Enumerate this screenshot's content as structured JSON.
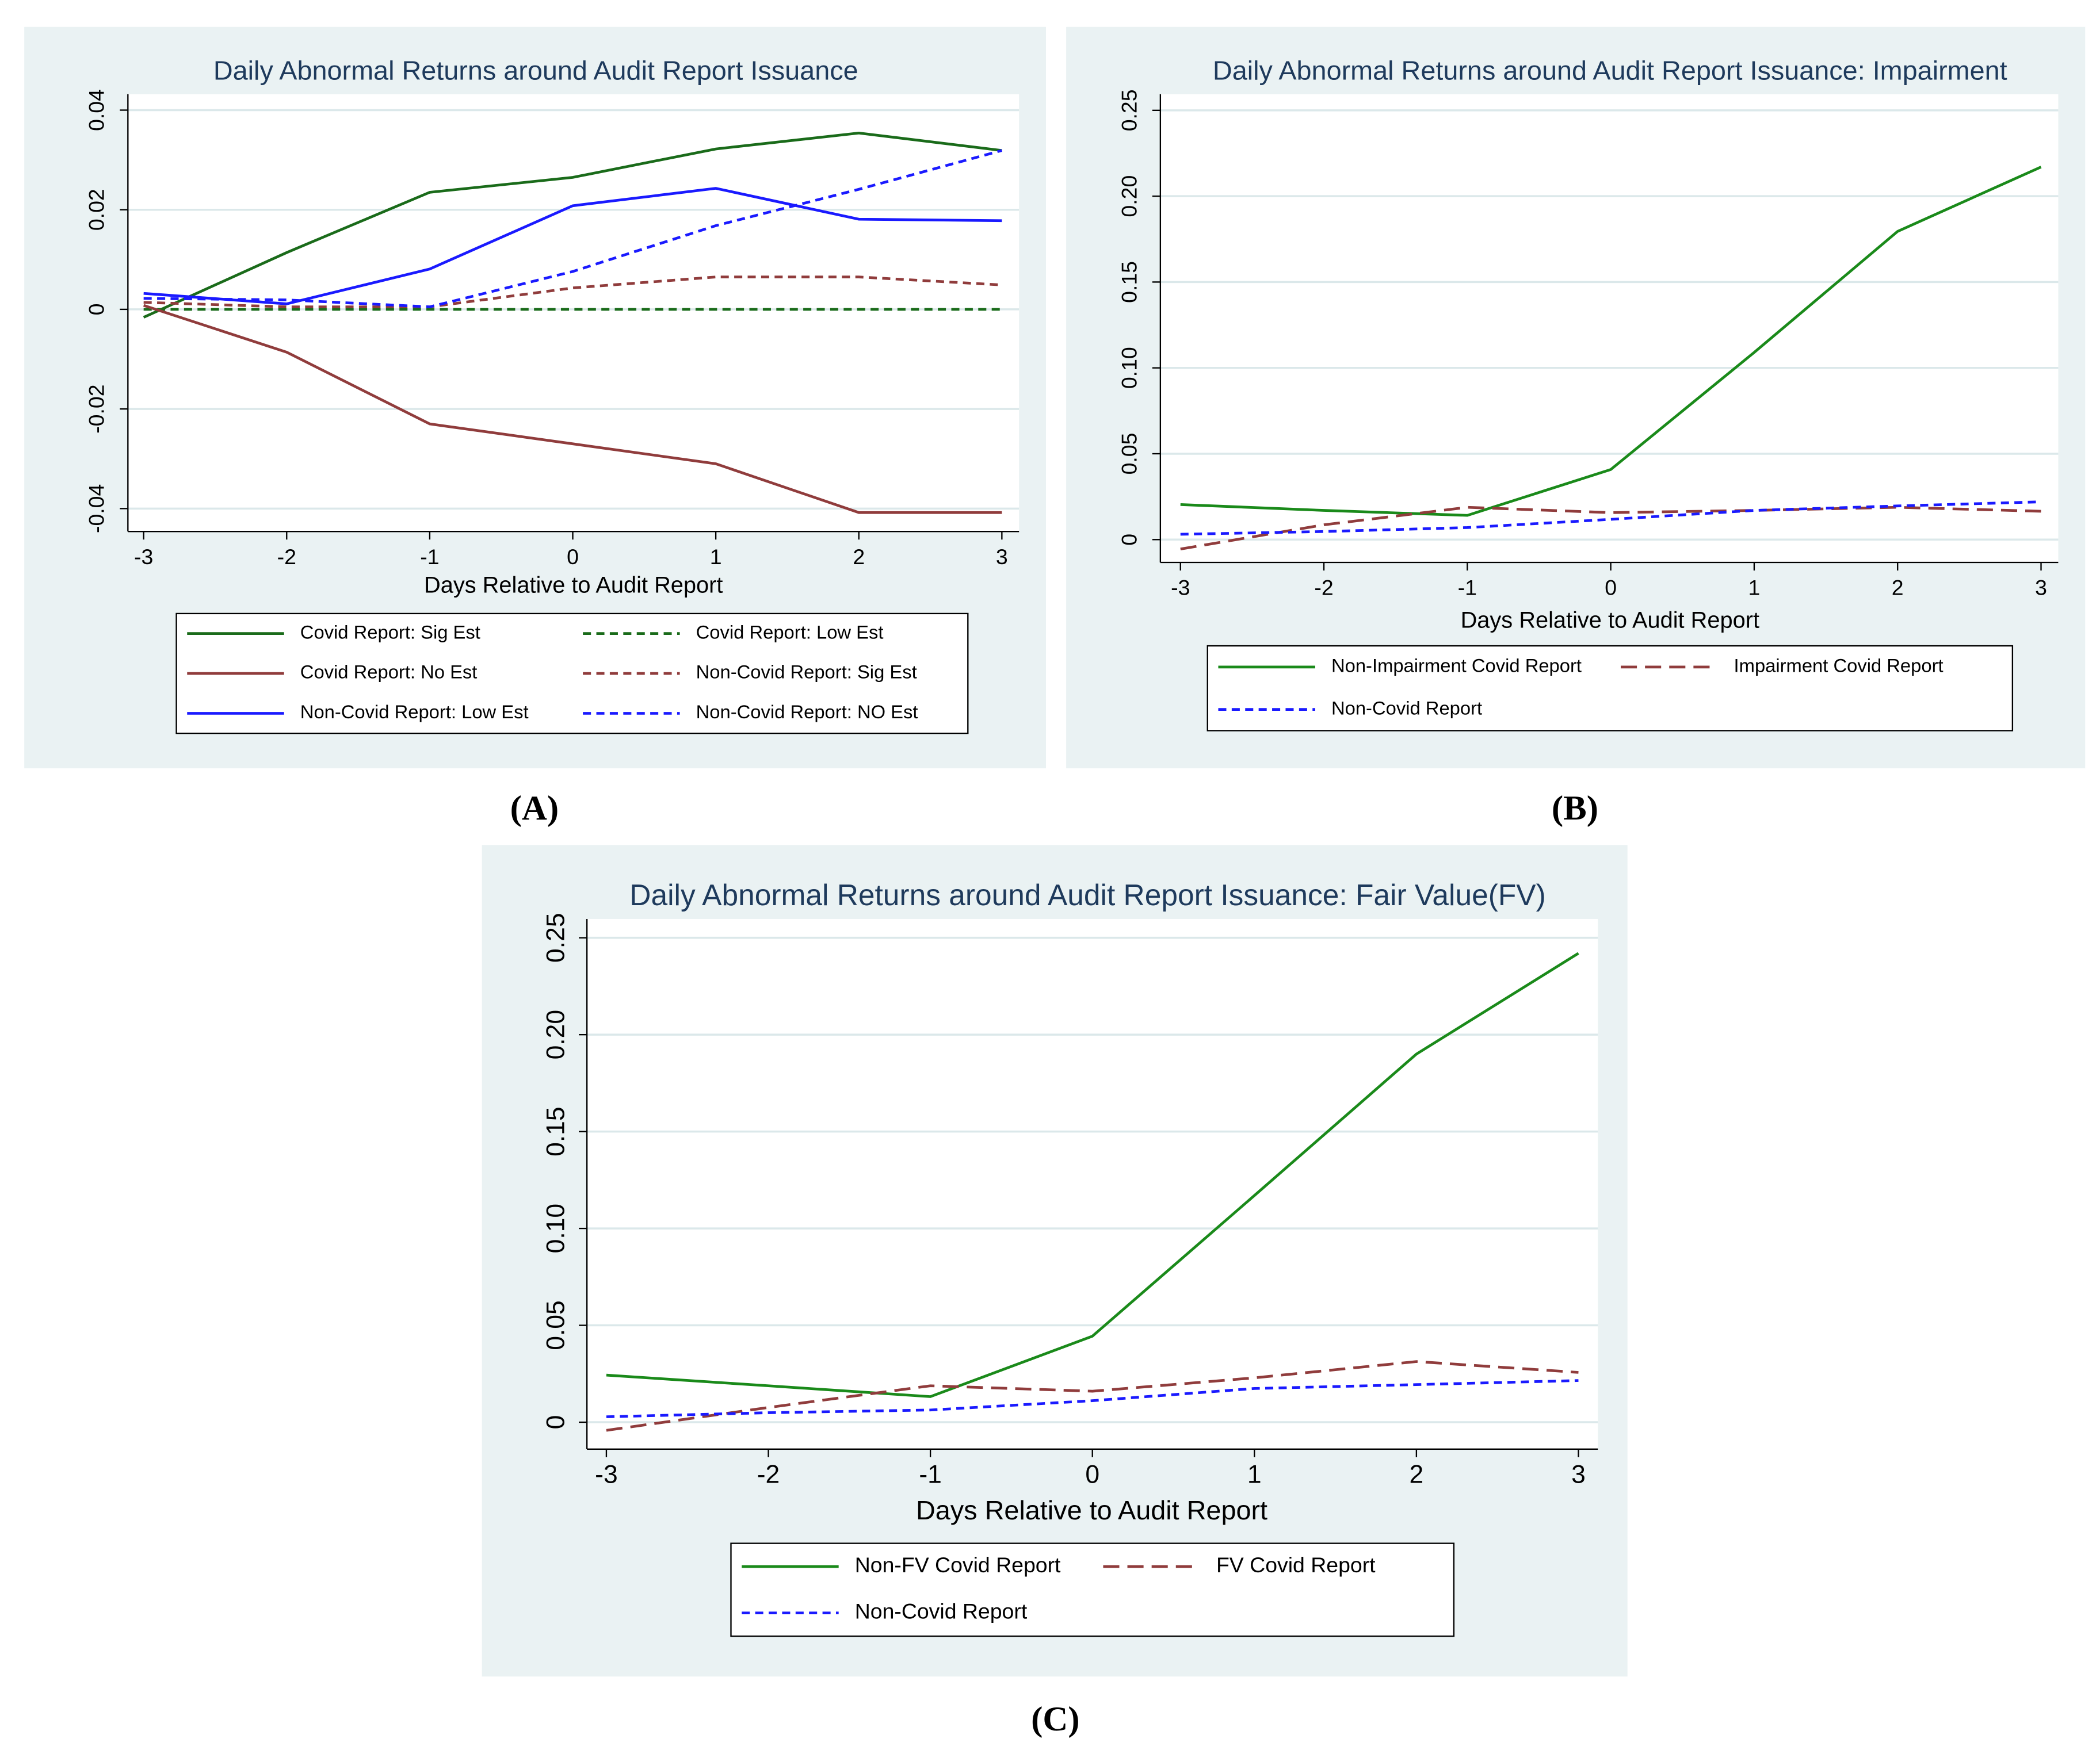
{
  "chart_data": [
    {
      "type": "line",
      "title": "Daily Abnormal Returns around Audit Report Issuance",
      "panel_label": "(A)",
      "x_label": "Days Relative to Audit Report",
      "x": [
        -3,
        -2,
        -1,
        0,
        1,
        2,
        3
      ],
      "xlim": [
        -3.11,
        3.12
      ],
      "xticks": [
        -3,
        -2,
        -1,
        0,
        1,
        2,
        3
      ],
      "ylim": [
        -0.0446,
        0.0432
      ],
      "yticks": [
        -0.04,
        -0.02,
        0,
        0.02,
        0.04
      ],
      "grid": true,
      "series": [
        {
          "name": "Covid Report: Sig Est",
          "color": "#1a6b1a",
          "linestyle": "solid",
          "values": [
            -0.0016,
            0.0114,
            0.0235,
            0.0265,
            0.0322,
            0.0354,
            0.0319
          ]
        },
        {
          "name": "Covid Report: Low Est",
          "color": "#1a6b1a",
          "linestyle": "dashed",
          "values": [
            0,
            0,
            0,
            0,
            0,
            0,
            0
          ]
        },
        {
          "name": "Covid Report: No Est",
          "color": "#903c3c",
          "linestyle": "solid",
          "values": [
            0.0008,
            -0.0086,
            -0.023,
            -0.027,
            -0.031,
            -0.0408,
            -0.0408
          ]
        },
        {
          "name": "Non-Covid Report: Sig Est",
          "color": "#903c3c",
          "linestyle": "dashed",
          "values": [
            0.0014,
            0.0005,
            0.0005,
            0.0043,
            0.0065,
            0.0065,
            0.0049
          ]
        },
        {
          "name": "Non-Covid Report: Low Est",
          "color": "#1a1aff",
          "linestyle": "solid",
          "values": [
            0.0032,
            0.0011,
            0.0081,
            0.0208,
            0.0243,
            0.0181,
            0.0178
          ]
        },
        {
          "name": "Non-Covid Report: NO Est",
          "color": "#1a1aff",
          "linestyle": "dashed",
          "values": [
            0.0022,
            0.0019,
            0.0005,
            0.0076,
            0.0168,
            0.0241,
            0.0319
          ]
        }
      ]
    },
    {
      "type": "line",
      "title": "Daily Abnormal Returns around Audit Report Issuance: Impairment",
      "panel_label": "(B)",
      "x_label": "Days Relative to Audit Report",
      "x": [
        -3,
        -2,
        -1,
        0,
        1,
        2,
        3
      ],
      "xlim": [
        -3.14,
        3.12
      ],
      "xticks": [
        -3,
        -2,
        -1,
        0,
        1,
        2,
        3
      ],
      "ylim": [
        -0.0133,
        0.2594
      ],
      "yticks": [
        0,
        0.05,
        {
          "value": 0.1,
          "label": "0.10"
        },
        0.15,
        {
          "value": 0.2,
          "label": "0.20"
        },
        0.25
      ],
      "grid": true,
      "series": [
        {
          "name": "Non-Impairment Covid Report",
          "color": "#1a8a1a",
          "linestyle": "solid",
          "values": [
            0.0204,
            0.017,
            0.0141,
            0.0408,
            0.109,
            0.1795,
            0.217
          ]
        },
        {
          "name": "Impairment Covid Report",
          "color": "#903c3c",
          "linestyle": "longdash",
          "values": [
            -0.0055,
            0.0086,
            0.0188,
            0.0157,
            0.017,
            0.0188,
            0.0165
          ]
        },
        {
          "name": "Non-Covid Report",
          "color": "#1a1aff",
          "linestyle": "dashed",
          "values": [
            0.0031,
            0.0047,
            0.007,
            0.0118,
            0.017,
            0.0196,
            0.022
          ]
        }
      ]
    },
    {
      "type": "line",
      "title": "Daily Abnormal Returns around Audit Report Issuance: Fair Value(FV)",
      "panel_label": "(C)",
      "x_label": "Days Relative to Audit Report",
      "x": [
        -3,
        -2,
        -1,
        0,
        1,
        2,
        3
      ],
      "xlim": [
        -3.12,
        3.12
      ],
      "xticks": [
        -3,
        -2,
        -1,
        0,
        1,
        2,
        3
      ],
      "ylim": [
        -0.0139,
        0.2597
      ],
      "yticks": [
        0,
        0.05,
        {
          "value": 0.1,
          "label": "0.10"
        },
        0.15,
        {
          "value": 0.2,
          "label": "0.20"
        },
        0.25
      ],
      "grid": true,
      "series": [
        {
          "name": "Non-FV Covid Report",
          "color": "#1a8a1a",
          "linestyle": "solid",
          "values": [
            0.0243,
            0.0188,
            0.0132,
            0.0444,
            0.117,
            0.19,
            0.242
          ]
        },
        {
          "name": "FV Covid Report",
          "color": "#903c3c",
          "linestyle": "longdash",
          "values": [
            -0.0042,
            0.0076,
            0.0188,
            0.016,
            0.0229,
            0.0313,
            0.0257
          ]
        },
        {
          "name": "Non-Covid Report",
          "color": "#1a1aff",
          "linestyle": "dashed",
          "values": [
            0.0028,
            0.0049,
            0.0063,
            0.0111,
            0.0174,
            0.0194,
            0.0215
          ]
        }
      ]
    }
  ]
}
